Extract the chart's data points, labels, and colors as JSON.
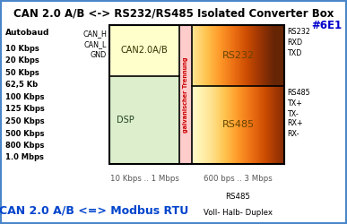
{
  "title": "CAN 2.0 A/B <-> RS232/RS485 Isolated Converter Box",
  "title_color": "#000000",
  "title_fontsize": 8.5,
  "product_id": "#6E1",
  "product_id_color": "#0000cc",
  "product_id_fontsize": 8.5,
  "bg_color": "#ffffff",
  "border_color": "#4a86c8",
  "left_labels": [
    "Autobaud",
    "10 Kbps",
    "20 Kbps",
    "50 Kbps",
    "62,5 Kb",
    "100 Kbps",
    "125 Kbps",
    "250 Kbps",
    "500 Kbps",
    "800 Kbps",
    "1.0 Mbps"
  ],
  "can_pins": [
    "CAN_H",
    "CAN_L",
    "GND"
  ],
  "rs232_pins": [
    "RS232",
    "RXD",
    "TXD"
  ],
  "rs485_pins": [
    "RS485",
    "TX+",
    "TX-",
    "RX+",
    "RX-"
  ],
  "can_top_color": "#ffffcc",
  "dsp_color": "#ddeecc",
  "galvanic_strip_color": "#ffcccc",
  "galvanic_text_color": "#cc0000",
  "rs_color_light": "#ffdd88",
  "rs_color_dark": "#ffaa22",
  "bottom_text_color": "#555555",
  "bottom_left_text": "10 Kbps .. 1 Mbps",
  "bottom_right_text": "600 bps .. 3 Mbps",
  "footer_text": "CAN 2.0 A/B <=> Modbus RTU",
  "footer_color": "#0044cc",
  "footer_right1": "RS485",
  "footer_right2": "Voll- Halb- Duplex"
}
